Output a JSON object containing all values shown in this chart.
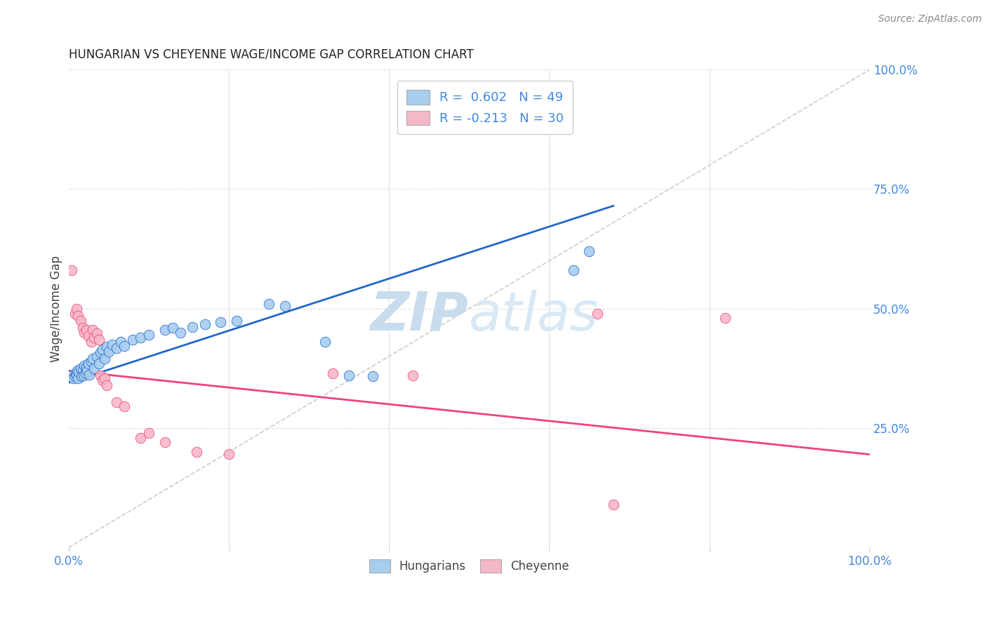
{
  "title": "HUNGARIAN VS CHEYENNE WAGE/INCOME GAP CORRELATION CHART",
  "source": "Source: ZipAtlas.com",
  "ylabel": "Wage/Income Gap",
  "blue_R": 0.602,
  "blue_N": 49,
  "pink_R": -0.213,
  "pink_N": 30,
  "blue_color": "#A8CEEE",
  "pink_color": "#F5B8C8",
  "blue_line_color": "#2266CC",
  "pink_line_color": "#EE4477",
  "dashed_line_color": "#CCCCCC",
  "watermark_zip_color": "#C8DCEE",
  "watermark_atlas_color": "#D8E8F4",
  "right_axis_color": "#4488DD",
  "grid_color": "#E0E0E0",
  "title_color": "#222222",
  "source_color": "#888888",
  "legend_entries": [
    "Hungarians",
    "Cheyenne"
  ],
  "background_color": "#FFFFFF",
  "blue_line_x": [
    0.0,
    0.68
  ],
  "blue_line_y": [
    0.345,
    0.715
  ],
  "pink_line_x": [
    0.0,
    1.0
  ],
  "pink_line_y": [
    0.37,
    0.195
  ],
  "diag_line_x": [
    0.0,
    1.0
  ],
  "diag_line_y": [
    0.0,
    1.0
  ],
  "blue_dots": [
    [
      0.004,
      0.36
    ],
    [
      0.006,
      0.355
    ],
    [
      0.008,
      0.358
    ],
    [
      0.009,
      0.365
    ],
    [
      0.01,
      0.362
    ],
    [
      0.011,
      0.37
    ],
    [
      0.012,
      0.355
    ],
    [
      0.013,
      0.368
    ],
    [
      0.015,
      0.375
    ],
    [
      0.016,
      0.358
    ],
    [
      0.018,
      0.372
    ],
    [
      0.019,
      0.36
    ],
    [
      0.02,
      0.38
    ],
    [
      0.021,
      0.365
    ],
    [
      0.022,
      0.378
    ],
    [
      0.023,
      0.37
    ],
    [
      0.025,
      0.385
    ],
    [
      0.026,
      0.362
    ],
    [
      0.028,
      0.39
    ],
    [
      0.03,
      0.395
    ],
    [
      0.032,
      0.375
    ],
    [
      0.035,
      0.4
    ],
    [
      0.038,
      0.385
    ],
    [
      0.04,
      0.408
    ],
    [
      0.042,
      0.415
    ],
    [
      0.045,
      0.395
    ],
    [
      0.048,
      0.42
    ],
    [
      0.05,
      0.41
    ],
    [
      0.055,
      0.425
    ],
    [
      0.06,
      0.418
    ],
    [
      0.065,
      0.43
    ],
    [
      0.07,
      0.422
    ],
    [
      0.08,
      0.435
    ],
    [
      0.09,
      0.44
    ],
    [
      0.1,
      0.445
    ],
    [
      0.12,
      0.455
    ],
    [
      0.13,
      0.46
    ],
    [
      0.14,
      0.45
    ],
    [
      0.155,
      0.462
    ],
    [
      0.17,
      0.468
    ],
    [
      0.19,
      0.472
    ],
    [
      0.21,
      0.475
    ],
    [
      0.25,
      0.51
    ],
    [
      0.27,
      0.505
    ],
    [
      0.32,
      0.43
    ],
    [
      0.35,
      0.36
    ],
    [
      0.38,
      0.358
    ],
    [
      0.63,
      0.58
    ],
    [
      0.65,
      0.62
    ]
  ],
  "pink_dots": [
    [
      0.004,
      0.58
    ],
    [
      0.008,
      0.49
    ],
    [
      0.01,
      0.5
    ],
    [
      0.012,
      0.485
    ],
    [
      0.015,
      0.475
    ],
    [
      0.018,
      0.46
    ],
    [
      0.02,
      0.45
    ],
    [
      0.022,
      0.455
    ],
    [
      0.025,
      0.442
    ],
    [
      0.028,
      0.43
    ],
    [
      0.03,
      0.455
    ],
    [
      0.032,
      0.44
    ],
    [
      0.035,
      0.448
    ],
    [
      0.038,
      0.435
    ],
    [
      0.04,
      0.36
    ],
    [
      0.042,
      0.35
    ],
    [
      0.045,
      0.355
    ],
    [
      0.048,
      0.34
    ],
    [
      0.06,
      0.305
    ],
    [
      0.07,
      0.295
    ],
    [
      0.09,
      0.23
    ],
    [
      0.1,
      0.24
    ],
    [
      0.12,
      0.22
    ],
    [
      0.16,
      0.2
    ],
    [
      0.2,
      0.195
    ],
    [
      0.33,
      0.365
    ],
    [
      0.43,
      0.36
    ],
    [
      0.66,
      0.49
    ],
    [
      0.82,
      0.48
    ],
    [
      0.68,
      0.09
    ]
  ],
  "xlim": [
    0.0,
    1.0
  ],
  "ylim": [
    0.0,
    1.0
  ],
  "yticks": [
    0.25,
    0.5,
    0.75,
    1.0
  ],
  "ytick_labels": [
    "25.0%",
    "50.0%",
    "75.0%",
    "100.0%"
  ],
  "xtick_positions": [
    0.0,
    1.0
  ],
  "xtick_labels": [
    "0.0%",
    "100.0%"
  ]
}
